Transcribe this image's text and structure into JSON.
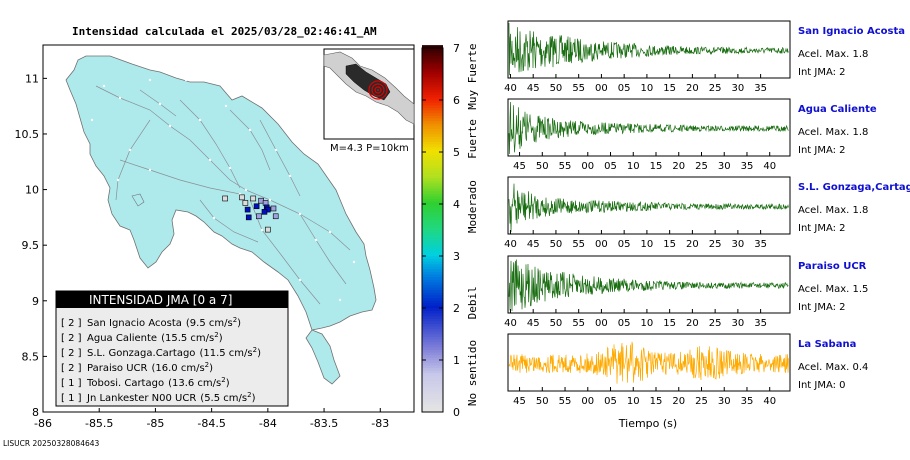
{
  "header": {
    "title": "Intensidad calculada el 2025/03/28_02:46:41_AM"
  },
  "footer": {
    "id": "LISUCR 20250328084643"
  },
  "colors": {
    "land": "#aeeaec",
    "sea": "#ffffff",
    "station_green": "#1a6e12",
    "station_orange": "#ffaa00",
    "station_name": "#1010d0"
  },
  "chart_data": [
    {
      "type": "map",
      "title": "Intensidad calculada el 2025/03/28_02:46:41_AM",
      "xlim": [
        -86,
        -82.7
      ],
      "ylim": [
        8,
        11.3
      ],
      "x_ticks": [
        "-86",
        "-85.5",
        "-85",
        "-84.5",
        "-84",
        "-83.5",
        "-83"
      ],
      "y_ticks": [
        "8",
        "8.5",
        "9",
        "9.5",
        "10",
        "10.5",
        "11"
      ],
      "inset_label": "M=4.3 P=10km",
      "epicenter": {
        "lon": -84.05,
        "lat": 9.78
      },
      "intensity_cells": [
        {
          "lon": -84.38,
          "lat": 9.92,
          "level": 0
        },
        {
          "lon": -84.23,
          "lat": 9.93,
          "level": 0
        },
        {
          "lon": -84.13,
          "lat": 9.92,
          "level": 0
        },
        {
          "lon": -84.06,
          "lat": 9.9,
          "level": 1
        },
        {
          "lon": -84.02,
          "lat": 9.88,
          "level": 1
        },
        {
          "lon": -84.1,
          "lat": 9.85,
          "level": 2
        },
        {
          "lon": -83.95,
          "lat": 9.83,
          "level": 1
        },
        {
          "lon": -83.93,
          "lat": 9.76,
          "level": 1
        },
        {
          "lon": -84.08,
          "lat": 9.76,
          "level": 1
        },
        {
          "lon": -84.18,
          "lat": 9.82,
          "level": 2
        },
        {
          "lon": -84.17,
          "lat": 9.75,
          "level": 2
        },
        {
          "lon": -84.01,
          "lat": 9.84,
          "level": 2
        },
        {
          "lon": -84.0,
          "lat": 9.82,
          "level": 2
        },
        {
          "lon": -84.03,
          "lat": 9.8,
          "level": 2
        },
        {
          "lon": -84.2,
          "lat": 9.88,
          "level": 0
        },
        {
          "lon": -84.0,
          "lat": 9.64,
          "level": 0
        }
      ],
      "legend": {
        "title": "INTENSIDAD JMA [0 a 7]",
        "rows": [
          {
            "level": "[ 2 ]",
            "station": "San Ignacio Acosta",
            "value": "(9.5 cm/s",
            "sup": "2",
            "close": ")"
          },
          {
            "level": "[ 2 ]",
            "station": "Agua Caliente",
            "value": "(15.5 cm/s",
            "sup": "2",
            "close": ")"
          },
          {
            "level": "[ 2 ]",
            "station": "S.L. Gonzaga.Cartago",
            "value": "(11.5 cm/s",
            "sup": "2",
            "close": ")"
          },
          {
            "level": "[ 2 ]",
            "station": "Paraiso UCR",
            "value": "(16.0 cm/s",
            "sup": "2",
            "close": ")"
          },
          {
            "level": "[ 1 ]",
            "station": "Tobosi. Cartago",
            "value": "(13.6 cm/s",
            "sup": "2",
            "close": ")"
          },
          {
            "level": "[ 1 ]",
            "station": "Jn Lankester N00 UCR",
            "value": "(5.5 cm/s",
            "sup": "2",
            "close": ")"
          }
        ]
      }
    },
    {
      "type": "heatmap",
      "name": "colorbar",
      "range": [
        0,
        7
      ],
      "ticks": [
        "0",
        "1",
        "2",
        "3",
        "4",
        "5",
        "6",
        "7"
      ],
      "category_labels": [
        "No sentido",
        "Debil",
        "Moderado",
        "Fuerte",
        "Muy Fuerte"
      ],
      "colors": [
        "#dcdcdc",
        "#a0a0e0",
        "#0010c0",
        "#00d8e0",
        "#30d030",
        "#e8e000",
        "#f02000",
        "#300000"
      ]
    },
    {
      "type": "line",
      "name": "waveforms",
      "xlabel": "Tiempo (s)",
      "traces": [
        {
          "station": "San Ignacio Acosta",
          "acel": "Acel. Max. 1.8",
          "int": "Int JMA: 2",
          "color": "#1a6e12",
          "ticks": [
            "40",
            "45",
            "50",
            "55",
            "00",
            "05",
            "10",
            "15",
            "20",
            "25",
            "30",
            "35"
          ],
          "first_tick_s": 40,
          "decay": 0.12,
          "burst_s": 45
        },
        {
          "station": "Agua Caliente",
          "acel": "Acel. Max. 1.8",
          "int": "Int JMA: 2",
          "color": "#1a6e12",
          "ticks": [
            "45",
            "50",
            "55",
            "00",
            "05",
            "10",
            "15",
            "20",
            "25",
            "30",
            "35",
            "40"
          ],
          "first_tick_s": 45,
          "decay": 0.05,
          "burst_s": 45
        },
        {
          "station": "S.L. Gonzaga,Cartago",
          "acel": "Acel. Max. 1.8",
          "int": "Int JMA: 2",
          "color": "#1a6e12",
          "ticks": [
            "40",
            "45",
            "50",
            "55",
            "00",
            "05",
            "10",
            "15",
            "20",
            "25",
            "30",
            "35"
          ],
          "first_tick_s": 40,
          "decay": 0.04,
          "burst_s": 44
        },
        {
          "station": "Paraiso UCR",
          "acel": "Acel. Max. 1.5",
          "int": "Int JMA: 2",
          "color": "#1a6e12",
          "ticks": [
            "40",
            "45",
            "50",
            "55",
            "00",
            "05",
            "10",
            "15",
            "20",
            "25",
            "30",
            "35"
          ],
          "first_tick_s": 40,
          "decay": 0.1,
          "burst_s": 42
        },
        {
          "station": "La Sabana",
          "acel": "Acel. Max. 0.4",
          "int": "Int JMA: 0",
          "color": "#ffaa00",
          "ticks": [
            "45",
            "50",
            "55",
            "00",
            "05",
            "10",
            "15",
            "20",
            "25",
            "30",
            "35",
            "40"
          ],
          "first_tick_s": 45,
          "decay": 0.0,
          "burst_s": 40
        }
      ]
    }
  ]
}
